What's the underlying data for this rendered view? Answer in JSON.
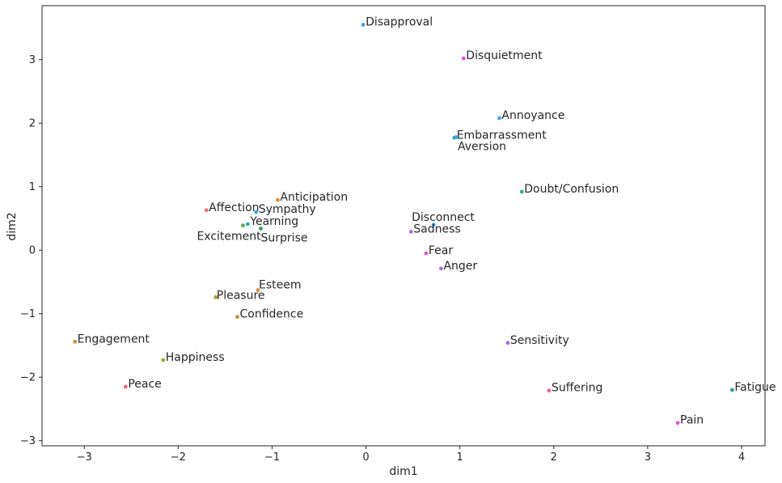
{
  "chart_data": {
    "type": "scatter",
    "title": "",
    "xlabel": "dim1",
    "ylabel": "dim2",
    "xlim": [
      -3.45,
      4.25
    ],
    "ylim": [
      -3.08,
      3.85
    ],
    "xticks": [
      -3,
      -2,
      -1,
      0,
      1,
      2,
      3,
      4
    ],
    "yticks": [
      -3,
      -2,
      -1,
      0,
      1,
      2,
      3
    ],
    "grid": false,
    "legend": "none",
    "points": [
      {
        "label": "Disapproval",
        "x": -0.03,
        "y": 3.55,
        "color": "#3ba3ec"
      },
      {
        "label": "Disquietment",
        "x": 1.04,
        "y": 3.02,
        "color": "#e84fd2"
      },
      {
        "label": "Annoyance",
        "x": 1.42,
        "y": 2.08,
        "color": "#3ba3ec"
      },
      {
        "label": "Embarrassment",
        "x": 0.94,
        "y": 1.77,
        "color": "#36ada4"
      },
      {
        "label": "Aversion",
        "x": 0.96,
        "y": 1.78,
        "color": "#3ba3ec"
      },
      {
        "label": "Doubt/Confusion",
        "x": 1.66,
        "y": 0.92,
        "color": "#33b07a"
      },
      {
        "label": "Anticipation",
        "x": -0.94,
        "y": 0.79,
        "color": "#e68a3c"
      },
      {
        "label": "Affection",
        "x": -1.7,
        "y": 0.63,
        "color": "#f2707a"
      },
      {
        "label": "Sympathy",
        "x": -1.17,
        "y": 0.6,
        "color": "#3ba3ec"
      },
      {
        "label": "Yearning",
        "x": -1.26,
        "y": 0.41,
        "color": "#36ada4"
      },
      {
        "label": "Excitement",
        "x": -1.31,
        "y": 0.39,
        "color": "#4cb050"
      },
      {
        "label": "Surprise",
        "x": -1.12,
        "y": 0.34,
        "color": "#2e9e48"
      },
      {
        "label": "Disconnect",
        "x": 0.72,
        "y": 0.4,
        "color": "#3ba3ec"
      },
      {
        "label": "Sadness",
        "x": 0.48,
        "y": 0.29,
        "color": "#b06ae0"
      },
      {
        "label": "Fear",
        "x": 0.64,
        "y": -0.05,
        "color": "#e84fd2"
      },
      {
        "label": "Anger",
        "x": 0.8,
        "y": -0.29,
        "color": "#a070ea"
      },
      {
        "label": "Esteem",
        "x": -1.15,
        "y": -0.63,
        "color": "#d68a3a"
      },
      {
        "label": "Pleasure",
        "x": -1.6,
        "y": -0.74,
        "color": "#b09a30"
      },
      {
        "label": "Confidence",
        "x": -1.37,
        "y": -1.05,
        "color": "#c09030"
      },
      {
        "label": "Engagement",
        "x": -3.1,
        "y": -1.44,
        "color": "#c8902e"
      },
      {
        "label": "Happiness",
        "x": -2.16,
        "y": -1.73,
        "color": "#9aa532"
      },
      {
        "label": "Peace",
        "x": -2.56,
        "y": -2.15,
        "color": "#f0607a"
      },
      {
        "label": "Sensitivity",
        "x": 1.51,
        "y": -1.46,
        "color": "#a070ea"
      },
      {
        "label": "Suffering",
        "x": 1.95,
        "y": -2.21,
        "color": "#f0608c"
      },
      {
        "label": "Pain",
        "x": 3.32,
        "y": -2.72,
        "color": "#e84fd2"
      },
      {
        "label": "Fatigue",
        "x": 3.9,
        "y": -2.2,
        "color": "#2a9e98"
      }
    ]
  }
}
